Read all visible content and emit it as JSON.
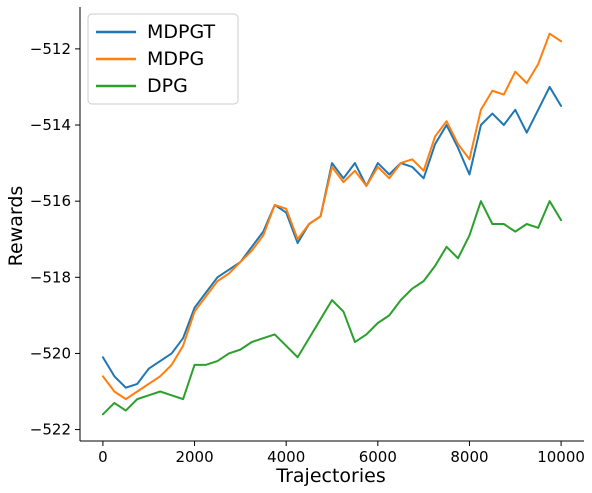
{
  "chart_data": {
    "type": "line",
    "title": "",
    "xlabel": "Trajectories",
    "ylabel": "Rewards",
    "xlim": [
      -500,
      10500
    ],
    "ylim": [
      -522.3,
      -510.9
    ],
    "x_ticks": [
      0,
      2000,
      4000,
      6000,
      8000,
      10000
    ],
    "x_tick_labels": [
      "0",
      "2000",
      "4000",
      "6000",
      "8000",
      "10000"
    ],
    "y_ticks": [
      -522,
      -520,
      -518,
      -516,
      -514,
      -512
    ],
    "y_tick_labels": [
      "−522",
      "−520",
      "−518",
      "−516",
      "−514",
      "−512"
    ],
    "grid": false,
    "legend_position": "top-left",
    "series": [
      {
        "name": "MDPGT",
        "color": "#1f77b4",
        "x": [
          0,
          250,
          500,
          750,
          1000,
          1250,
          1500,
          1750,
          2000,
          2250,
          2500,
          2750,
          3000,
          3250,
          3500,
          3750,
          4000,
          4250,
          4500,
          4750,
          5000,
          5250,
          5500,
          5750,
          6000,
          6250,
          6500,
          6750,
          7000,
          7250,
          7500,
          7750,
          8000,
          8250,
          8500,
          8750,
          9000,
          9250,
          9500,
          9750,
          10000
        ],
        "y": [
          -520.1,
          -520.6,
          -520.9,
          -520.8,
          -520.4,
          -520.2,
          -520.0,
          -519.6,
          -518.8,
          -518.4,
          -518.0,
          -517.8,
          -517.6,
          -517.2,
          -516.8,
          -516.1,
          -516.3,
          -517.1,
          -516.6,
          -516.4,
          -515.0,
          -515.4,
          -515.0,
          -515.6,
          -515.0,
          -515.3,
          -515.0,
          -515.1,
          -515.4,
          -514.5,
          -514.0,
          -514.6,
          -515.3,
          -514.0,
          -513.7,
          -514.0,
          -513.6,
          -514.2,
          -513.6,
          -513.0,
          -513.5
        ]
      },
      {
        "name": "MDPG",
        "color": "#ff7f0e",
        "x": [
          0,
          250,
          500,
          750,
          1000,
          1250,
          1500,
          1750,
          2000,
          2250,
          2500,
          2750,
          3000,
          3250,
          3500,
          3750,
          4000,
          4250,
          4500,
          4750,
          5000,
          5250,
          5500,
          5750,
          6000,
          6250,
          6500,
          6750,
          7000,
          7250,
          7500,
          7750,
          8000,
          8250,
          8500,
          8750,
          9000,
          9250,
          9500,
          9750,
          10000
        ],
        "y": [
          -520.6,
          -521.0,
          -521.2,
          -521.0,
          -520.8,
          -520.6,
          -520.3,
          -519.8,
          -518.9,
          -518.5,
          -518.1,
          -517.9,
          -517.6,
          -517.3,
          -516.9,
          -516.1,
          -516.2,
          -517.0,
          -516.6,
          -516.4,
          -515.1,
          -515.5,
          -515.2,
          -515.6,
          -515.1,
          -515.4,
          -515.0,
          -514.9,
          -515.2,
          -514.3,
          -513.9,
          -514.5,
          -514.9,
          -513.6,
          -513.1,
          -513.2,
          -512.6,
          -512.9,
          -512.4,
          -511.6,
          -511.8
        ]
      },
      {
        "name": "DPG",
        "color": "#2ca02c",
        "x": [
          0,
          250,
          500,
          750,
          1000,
          1250,
          1500,
          1750,
          2000,
          2250,
          2500,
          2750,
          3000,
          3250,
          3500,
          3750,
          4000,
          4250,
          4500,
          4750,
          5000,
          5250,
          5500,
          5750,
          6000,
          6250,
          6500,
          6750,
          7000,
          7250,
          7500,
          7750,
          8000,
          8250,
          8500,
          8750,
          9000,
          9250,
          9500,
          9750,
          10000
        ],
        "y": [
          -521.6,
          -521.3,
          -521.5,
          -521.2,
          -521.1,
          -521.0,
          -521.1,
          -521.2,
          -520.3,
          -520.3,
          -520.2,
          -520.0,
          -519.9,
          -519.7,
          -519.6,
          -519.5,
          -519.8,
          -520.1,
          -519.6,
          -519.1,
          -518.6,
          -518.9,
          -519.7,
          -519.5,
          -519.2,
          -519.0,
          -518.6,
          -518.3,
          -518.1,
          -517.7,
          -517.2,
          -517.5,
          -516.9,
          -516.0,
          -516.6,
          -516.6,
          -516.8,
          -516.6,
          -516.7,
          -516.0,
          -516.5
        ]
      }
    ]
  }
}
